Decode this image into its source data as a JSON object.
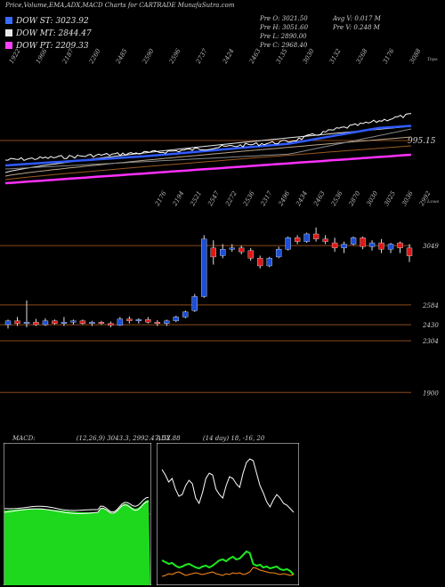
{
  "header": {
    "title": "Price,Volume,EMA,ADX,MACD Charts for CARTRADE MunafaSutra.com"
  },
  "legend": [
    {
      "label": "DOW ST: 3023.92",
      "color": "#3b6bff"
    },
    {
      "label": "DOW MT: 2844.47",
      "color": "#e8e8e8"
    },
    {
      "label": "DOW PT: 2209.33",
      "color": "#ff40ff"
    }
  ],
  "info": {
    "col1": [
      "Pre O: 3021.50",
      "Pre H: 3051.60",
      "Pre L: 2890.00",
      "Pre C: 2968.40"
    ],
    "col2": [
      "Avg V: 0.017 M",
      "Pre V: 0.248 M"
    ]
  },
  "colors": {
    "up": "#1c4fd8",
    "down": "#e01818",
    "ema_st": "#2f5bff",
    "ema_pt": "#ff30ff",
    "level": "#8b4a1a",
    "macd_fill": "#1dd81d",
    "adx_plus": "#1ee81e",
    "adx_minus": "#ff8c1a"
  },
  "chart_data": [
    {
      "type": "line",
      "panel": "volume-ema",
      "top_labels": [
        "1922",
        "1966",
        "2187",
        "2260",
        "2485",
        "2590",
        "2596",
        "2737",
        "2424",
        "2463",
        "3135",
        "3030",
        "3132",
        "3268",
        "3176",
        "3088"
      ],
      "bottom_labels": [
        "2176",
        "2194",
        "2521",
        "2547",
        "2272",
        "2536",
        "2317",
        "2496",
        "2434",
        "2463",
        "2536",
        "2870",
        "3030",
        "3025",
        "3036",
        "2992"
      ],
      "right_labels": [
        "Tops",
        "995.15",
        "Lows"
      ]
    },
    {
      "type": "candlestick",
      "panel": "price",
      "price_levels": [
        3049,
        2584,
        2430,
        2304,
        1900
      ],
      "ylim": [
        1700,
        3300
      ],
      "candles": [
        {
          "o": 2430,
          "h": 2470,
          "l": 2400,
          "c": 2460
        },
        {
          "o": 2460,
          "h": 2490,
          "l": 2420,
          "c": 2440
        },
        {
          "o": 2440,
          "h": 2620,
          "l": 2410,
          "c": 2450
        },
        {
          "o": 2450,
          "h": 2475,
          "l": 2420,
          "c": 2430
        },
        {
          "o": 2430,
          "h": 2480,
          "l": 2420,
          "c": 2460
        },
        {
          "o": 2460,
          "h": 2470,
          "l": 2430,
          "c": 2440
        },
        {
          "o": 2440,
          "h": 2490,
          "l": 2420,
          "c": 2450
        },
        {
          "o": 2450,
          "h": 2470,
          "l": 2430,
          "c": 2460
        },
        {
          "o": 2460,
          "h": 2470,
          "l": 2430,
          "c": 2440
        },
        {
          "o": 2440,
          "h": 2460,
          "l": 2420,
          "c": 2450
        },
        {
          "o": 2450,
          "h": 2460,
          "l": 2430,
          "c": 2440
        },
        {
          "o": 2440,
          "h": 2455,
          "l": 2410,
          "c": 2425
        },
        {
          "o": 2425,
          "h": 2490,
          "l": 2420,
          "c": 2475
        },
        {
          "o": 2475,
          "h": 2495,
          "l": 2440,
          "c": 2460
        },
        {
          "o": 2460,
          "h": 2480,
          "l": 2440,
          "c": 2470
        },
        {
          "o": 2470,
          "h": 2490,
          "l": 2440,
          "c": 2450
        },
        {
          "o": 2450,
          "h": 2465,
          "l": 2420,
          "c": 2440
        },
        {
          "o": 2440,
          "h": 2470,
          "l": 2420,
          "c": 2460
        },
        {
          "o": 2460,
          "h": 2500,
          "l": 2450,
          "c": 2490
        },
        {
          "o": 2490,
          "h": 2540,
          "l": 2480,
          "c": 2530
        },
        {
          "o": 2540,
          "h": 2670,
          "l": 2530,
          "c": 2650
        },
        {
          "o": 2650,
          "h": 3130,
          "l": 2640,
          "c": 3100
        },
        {
          "o": 3030,
          "h": 3090,
          "l": 2900,
          "c": 2960
        },
        {
          "o": 2970,
          "h": 3060,
          "l": 2950,
          "c": 3020
        },
        {
          "o": 3020,
          "h": 3060,
          "l": 3000,
          "c": 3030
        },
        {
          "o": 3030,
          "h": 3050,
          "l": 2980,
          "c": 3000
        },
        {
          "o": 3010,
          "h": 3030,
          "l": 2930,
          "c": 2950
        },
        {
          "o": 2950,
          "h": 2970,
          "l": 2870,
          "c": 2890
        },
        {
          "o": 2890,
          "h": 2960,
          "l": 2880,
          "c": 2950
        },
        {
          "o": 2960,
          "h": 3040,
          "l": 2950,
          "c": 3020
        },
        {
          "o": 3020,
          "h": 3120,
          "l": 3010,
          "c": 3110
        },
        {
          "o": 3110,
          "h": 3130,
          "l": 3060,
          "c": 3080
        },
        {
          "o": 3080,
          "h": 3150,
          "l": 3070,
          "c": 3140
        },
        {
          "o": 3140,
          "h": 3190,
          "l": 3080,
          "c": 3100
        },
        {
          "o": 3100,
          "h": 3130,
          "l": 3060,
          "c": 3080
        },
        {
          "o": 3070,
          "h": 3110,
          "l": 3000,
          "c": 3030
        },
        {
          "o": 3030,
          "h": 3080,
          "l": 2990,
          "c": 3060
        },
        {
          "o": 3060,
          "h": 3120,
          "l": 3050,
          "c": 3110
        },
        {
          "o": 3110,
          "h": 3120,
          "l": 3020,
          "c": 3040
        },
        {
          "o": 3040,
          "h": 3090,
          "l": 3010,
          "c": 3070
        },
        {
          "o": 3070,
          "h": 3100,
          "l": 2990,
          "c": 3020
        },
        {
          "o": 3020,
          "h": 3070,
          "l": 2990,
          "c": 3060
        },
        {
          "o": 3070,
          "h": 3080,
          "l": 2990,
          "c": 3030
        },
        {
          "o": 3030,
          "h": 3060,
          "l": 2920,
          "c": 2968
        }
      ]
    },
    {
      "type": "area",
      "panel": "macd",
      "title": "MACD:",
      "params": "(12,26,9) 3043.3, 2992.47, 52.88"
    },
    {
      "type": "line",
      "panel": "adx",
      "title": "ADX",
      "params": "(14 day) 18, -16, 20"
    }
  ]
}
